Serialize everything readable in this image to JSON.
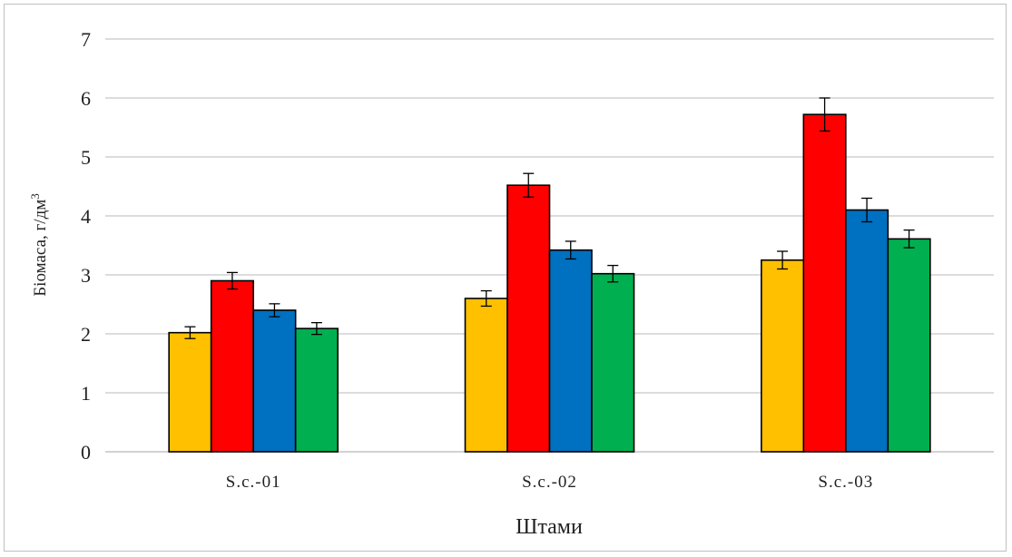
{
  "chart_data": {
    "type": "bar",
    "title": "",
    "xlabel": "Штами",
    "ylabel": "Біомаса, г/дм",
    "ylabel_superscript": "3",
    "categories": [
      "S.c.-01",
      "S.c.-02",
      "S.c.-03"
    ],
    "yticks": [
      "0",
      "1",
      "2",
      "3",
      "4",
      "5",
      "6",
      "7"
    ],
    "ylim": [
      0,
      7
    ],
    "grid": true,
    "legend": "none",
    "series": [
      {
        "color": "#FFC000",
        "values": [
          2.02,
          2.6,
          3.25
        ],
        "errors": [
          0.1,
          0.13,
          0.15
        ]
      },
      {
        "color": "#FF0000",
        "values": [
          2.9,
          4.52,
          5.72
        ],
        "errors": [
          0.14,
          0.2,
          0.28
        ]
      },
      {
        "color": "#0070C0",
        "values": [
          2.4,
          3.42,
          4.1
        ],
        "errors": [
          0.11,
          0.15,
          0.2
        ]
      },
      {
        "color": "#00B050",
        "values": [
          2.09,
          3.02,
          3.61
        ],
        "errors": [
          0.1,
          0.14,
          0.15
        ]
      }
    ]
  }
}
